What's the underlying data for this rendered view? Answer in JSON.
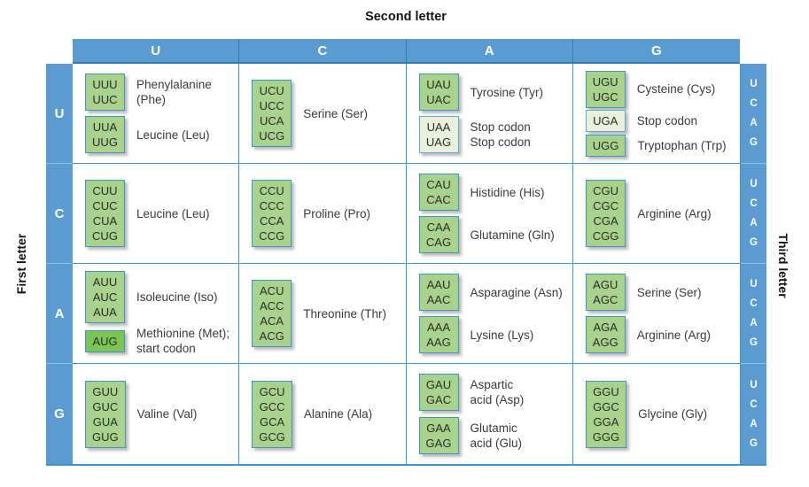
{
  "title": "Second letter",
  "axes": {
    "left": "First letter",
    "right": "Third letter",
    "top_letters": [
      "U",
      "C",
      "A",
      "G"
    ],
    "left_letters": [
      "U",
      "C",
      "A",
      "G"
    ],
    "right_letters": [
      "U",
      "C",
      "A",
      "G"
    ]
  },
  "colors": {
    "header_blue": "#5b9bd0",
    "divider_dark_blue": "#2e7cb8",
    "grid_blue": "#3e93cc",
    "codon_green": "#a9d38c",
    "stop_pale_green": "#e9f1dc",
    "start_green": "#7cc454"
  },
  "cells": [
    {
      "first": "U",
      "second": "U",
      "groups": [
        {
          "codons": [
            "UUU",
            "UUC"
          ],
          "variant": "normal",
          "label": [
            "Phenylalanine",
            "(Phe)"
          ]
        },
        {
          "codons": [
            "UUA",
            "UUG"
          ],
          "variant": "normal",
          "label": "Leucine (Leu)"
        }
      ]
    },
    {
      "first": "U",
      "second": "C",
      "groups": [
        {
          "codons": [
            "UCU",
            "UCC",
            "UCA",
            "UCG"
          ],
          "variant": "normal",
          "label": "Serine (Ser)"
        }
      ]
    },
    {
      "first": "U",
      "second": "A",
      "groups": [
        {
          "codons": [
            "UAU",
            "UAC"
          ],
          "variant": "normal",
          "label": "Tyrosine (Tyr)"
        },
        {
          "codons": [
            "UAA",
            "UAG"
          ],
          "variant": "pale",
          "label": [
            "Stop codon",
            "Stop codon"
          ]
        }
      ]
    },
    {
      "first": "U",
      "second": "G",
      "groups": [
        {
          "codons": [
            "UGU",
            "UGC"
          ],
          "variant": "normal",
          "label": "Cysteine (Cys)"
        },
        {
          "codons": [
            "UGA"
          ],
          "variant": "pale",
          "label": "Stop codon"
        },
        {
          "codons": [
            "UGG"
          ],
          "variant": "normal",
          "label": "Tryptophan (Trp)"
        }
      ]
    },
    {
      "first": "C",
      "second": "U",
      "groups": [
        {
          "codons": [
            "CUU",
            "CUC",
            "CUA",
            "CUG"
          ],
          "variant": "normal",
          "label": "Leucine (Leu)"
        }
      ]
    },
    {
      "first": "C",
      "second": "C",
      "groups": [
        {
          "codons": [
            "CCU",
            "CCC",
            "CCA",
            "CCG"
          ],
          "variant": "normal",
          "label": "Proline (Pro)"
        }
      ]
    },
    {
      "first": "C",
      "second": "A",
      "groups": [
        {
          "codons": [
            "CAU",
            "CAC"
          ],
          "variant": "normal",
          "label": "Histidine (His)"
        },
        {
          "codons": [
            "CAA",
            "CAG"
          ],
          "variant": "normal",
          "label": "Glutamine (Gln)"
        }
      ]
    },
    {
      "first": "C",
      "second": "G",
      "groups": [
        {
          "codons": [
            "CGU",
            "CGC",
            "CGA",
            "CGG"
          ],
          "variant": "normal",
          "label": "Arginine (Arg)"
        }
      ]
    },
    {
      "first": "A",
      "second": "U",
      "groups": [
        {
          "codons": [
            "AUU",
            "AUC",
            "AUA"
          ],
          "variant": "normal",
          "label": "Isoleucine (Iso)"
        },
        {
          "codons": [
            "AUG"
          ],
          "variant": "start",
          "label": [
            "Methionine (Met);",
            "start codon"
          ]
        }
      ]
    },
    {
      "first": "A",
      "second": "C",
      "groups": [
        {
          "codons": [
            "ACU",
            "ACC",
            "ACA",
            "ACG"
          ],
          "variant": "normal",
          "label": "Threonine (Thr)"
        }
      ]
    },
    {
      "first": "A",
      "second": "A",
      "groups": [
        {
          "codons": [
            "AAU",
            "AAC"
          ],
          "variant": "normal",
          "label": "Asparagine (Asn)"
        },
        {
          "codons": [
            "AAA",
            "AAG"
          ],
          "variant": "normal",
          "label": "Lysine (Lys)"
        }
      ]
    },
    {
      "first": "A",
      "second": "G",
      "groups": [
        {
          "codons": [
            "AGU",
            "AGC"
          ],
          "variant": "normal",
          "label": "Serine (Ser)"
        },
        {
          "codons": [
            "AGA",
            "AGG"
          ],
          "variant": "normal",
          "label": "Arginine (Arg)"
        }
      ]
    },
    {
      "first": "G",
      "second": "U",
      "groups": [
        {
          "codons": [
            "GUU",
            "GUC",
            "GUA",
            "GUG"
          ],
          "variant": "normal",
          "label": "Valine (Val)"
        }
      ]
    },
    {
      "first": "G",
      "second": "C",
      "groups": [
        {
          "codons": [
            "GCU",
            "GCC",
            "GCA",
            "GCG"
          ],
          "variant": "normal",
          "label": "Alanine (Ala)"
        }
      ]
    },
    {
      "first": "G",
      "second": "A",
      "groups": [
        {
          "codons": [
            "GAU",
            "GAC"
          ],
          "variant": "normal",
          "label": [
            "Aspartic",
            "acid (Asp)"
          ]
        },
        {
          "codons": [
            "GAA",
            "GAG"
          ],
          "variant": "normal",
          "label": [
            "Glutamic",
            "acid (Glu)"
          ]
        }
      ]
    },
    {
      "first": "G",
      "second": "G",
      "groups": [
        {
          "codons": [
            "GGU",
            "GGC",
            "GGA",
            "GGG"
          ],
          "variant": "normal",
          "label": "Glycine (Gly)"
        }
      ]
    }
  ]
}
